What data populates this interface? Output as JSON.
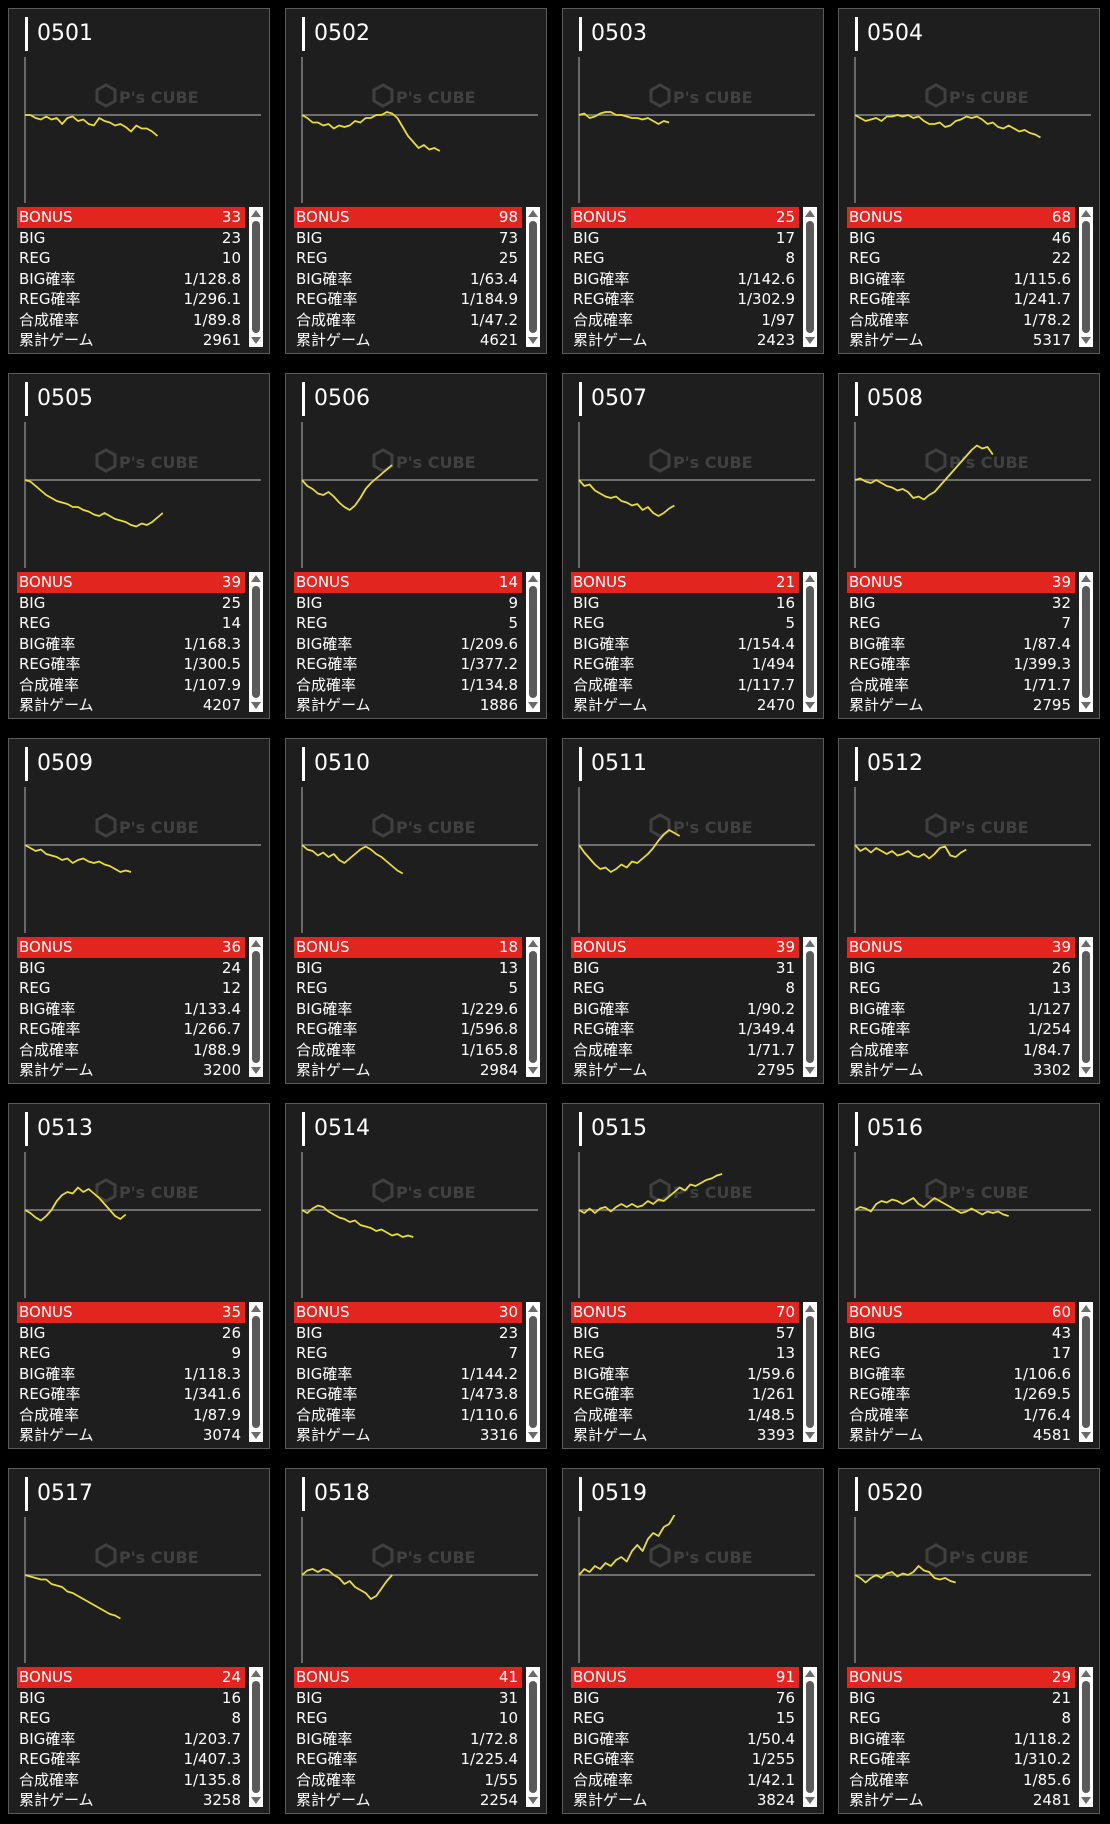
{
  "labels": {
    "bonus": "BONUS",
    "big": "BIG",
    "reg": "REG",
    "big_rate": "BIG確率",
    "reg_rate": "REG確率",
    "combined_rate": "合成確率",
    "total_games": "累計ゲーム"
  },
  "watermark": {
    "text": "P's CUBE"
  },
  "colors": {
    "line": "#e8dd3c",
    "bonus_bar": "#e2261f",
    "card": "#1e1e1e",
    "axis": "#888888"
  },
  "machines": [
    {
      "id": "0501",
      "bonus": "33",
      "big": "23",
      "reg": "10",
      "big_rate": "1/128.8",
      "reg_rate": "1/296.1",
      "combined_rate": "1/89.8",
      "total_games": "2961",
      "trend": [
        0,
        0,
        0.1,
        0.15,
        0.05,
        0.15,
        0.1,
        0.3,
        0.1,
        0.05,
        0.2,
        0.15,
        0.3,
        0.35,
        0.1,
        0.2,
        0.25,
        0.35,
        0.3,
        0.4,
        0.55,
        0.35,
        0.45,
        0.45,
        0.55,
        0.7
      ]
    },
    {
      "id": "0502",
      "bonus": "98",
      "big": "73",
      "reg": "25",
      "big_rate": "1/63.4",
      "reg_rate": "1/184.9",
      "combined_rate": "1/47.2",
      "total_games": "4621",
      "trend": [
        0,
        0.1,
        0.25,
        0.25,
        0.35,
        0.3,
        0.45,
        0.35,
        0.4,
        0.35,
        0.2,
        0.25,
        0.1,
        0.1,
        0,
        0,
        -0.1,
        -0.05,
        0.1,
        0.4,
        0.7,
        0.9,
        1.1,
        1.0,
        1.15,
        1.1,
        1.2
      ]
    },
    {
      "id": "0503",
      "bonus": "25",
      "big": "17",
      "reg": "8",
      "big_rate": "1/142.6",
      "reg_rate": "1/302.9",
      "combined_rate": "1/97",
      "total_games": "2423",
      "trend": [
        0,
        -0.05,
        0.1,
        0.05,
        -0.05,
        -0.1,
        -0.1,
        0,
        0,
        0.05,
        0.1,
        0.1,
        0.15,
        0.1,
        0.2,
        0.3,
        0.2,
        0.25
      ]
    },
    {
      "id": "0504",
      "bonus": "68",
      "big": "46",
      "reg": "22",
      "big_rate": "1/115.6",
      "reg_rate": "1/241.7",
      "combined_rate": "1/78.2",
      "total_games": "5317",
      "trend": [
        0,
        0.1,
        0.2,
        0.15,
        0.1,
        0.2,
        0.05,
        0.05,
        0,
        0.05,
        0,
        0.1,
        0.05,
        0.2,
        0.3,
        0.3,
        0.25,
        0.4,
        0.35,
        0.2,
        0.15,
        0.05,
        0.1,
        0.05,
        0.15,
        0.3,
        0.25,
        0.4,
        0.45,
        0.35,
        0.45,
        0.55,
        0.5,
        0.6,
        0.65,
        0.75
      ]
    },
    {
      "id": "0505",
      "bonus": "39",
      "big": "25",
      "reg": "14",
      "big_rate": "1/168.3",
      "reg_rate": "1/300.5",
      "combined_rate": "1/107.9",
      "total_games": "4207",
      "trend": [
        0,
        0.05,
        0.2,
        0.35,
        0.5,
        0.6,
        0.7,
        0.75,
        0.8,
        0.9,
        0.9,
        1.0,
        1.05,
        1.15,
        1.2,
        1.1,
        1.2,
        1.3,
        1.35,
        1.4,
        1.5,
        1.55,
        1.45,
        1.5,
        1.4,
        1.25,
        1.1
      ]
    },
    {
      "id": "0506",
      "bonus": "14",
      "big": "9",
      "reg": "5",
      "big_rate": "1/209.6",
      "reg_rate": "1/377.2",
      "combined_rate": "1/134.8",
      "total_games": "1886",
      "trend": [
        0,
        0.2,
        0.3,
        0.45,
        0.5,
        0.4,
        0.55,
        0.75,
        0.9,
        1.0,
        0.85,
        0.6,
        0.3,
        0.1,
        -0.05,
        -0.2,
        -0.35,
        -0.5
      ]
    },
    {
      "id": "0507",
      "bonus": "21",
      "big": "16",
      "reg": "5",
      "big_rate": "1/154.4",
      "reg_rate": "1/494",
      "combined_rate": "1/117.7",
      "total_games": "2470",
      "trend": [
        0,
        0.2,
        0.15,
        0.35,
        0.45,
        0.55,
        0.6,
        0.55,
        0.7,
        0.75,
        0.85,
        0.8,
        1.0,
        0.9,
        1.1,
        1.2,
        1.1,
        0.95,
        0.85
      ]
    },
    {
      "id": "0508",
      "bonus": "39",
      "big": "32",
      "reg": "7",
      "big_rate": "1/87.4",
      "reg_rate": "1/399.3",
      "combined_rate": "1/71.7",
      "total_games": "2795",
      "trend": [
        0,
        -0.05,
        0.05,
        0.1,
        0,
        0.1,
        0.2,
        0.25,
        0.35,
        0.3,
        0.4,
        0.6,
        0.55,
        0.65,
        0.5,
        0.4,
        0.2,
        0,
        -0.2,
        -0.4,
        -0.6,
        -0.8,
        -1.0,
        -1.15,
        -1.05,
        -1.1,
        -0.85
      ]
    },
    {
      "id": "0509",
      "bonus": "36",
      "big": "24",
      "reg": "12",
      "big_rate": "1/133.4",
      "reg_rate": "1/266.7",
      "combined_rate": "1/88.9",
      "total_games": "3200",
      "trend": [
        0,
        0.1,
        0.2,
        0.15,
        0.3,
        0.35,
        0.4,
        0.5,
        0.45,
        0.6,
        0.5,
        0.45,
        0.55,
        0.6,
        0.55,
        0.65,
        0.7,
        0.8,
        0.9,
        0.85,
        0.9
      ]
    },
    {
      "id": "0510",
      "bonus": "18",
      "big": "13",
      "reg": "5",
      "big_rate": "1/229.6",
      "reg_rate": "1/596.8",
      "combined_rate": "1/165.8",
      "total_games": "2984",
      "trend": [
        0,
        0.15,
        0.2,
        0.35,
        0.25,
        0.4,
        0.3,
        0.5,
        0.6,
        0.45,
        0.3,
        0.15,
        0.05,
        0.15,
        0.3,
        0.4,
        0.55,
        0.7,
        0.85,
        0.95
      ]
    },
    {
      "id": "0511",
      "bonus": "39",
      "big": "31",
      "reg": "8",
      "big_rate": "1/90.2",
      "reg_rate": "1/349.4",
      "combined_rate": "1/71.7",
      "total_games": "2795",
      "trend": [
        0,
        0.25,
        0.45,
        0.65,
        0.8,
        0.75,
        0.9,
        0.8,
        0.65,
        0.75,
        0.55,
        0.6,
        0.45,
        0.3,
        0.1,
        -0.15,
        -0.35,
        -0.5,
        -0.4,
        -0.3
      ]
    },
    {
      "id": "0512",
      "bonus": "39",
      "big": "26",
      "reg": "13",
      "big_rate": "1/127",
      "reg_rate": "1/254",
      "combined_rate": "1/84.7",
      "total_games": "3302",
      "trend": [
        0,
        0.2,
        0.1,
        0.25,
        0.1,
        0.2,
        0.3,
        0.2,
        0.35,
        0.3,
        0.2,
        0.35,
        0.4,
        0.3,
        0.45,
        0.3,
        0.1,
        0.05,
        0.35,
        0.4,
        0.25,
        0.15
      ]
    },
    {
      "id": "0513",
      "bonus": "35",
      "big": "26",
      "reg": "9",
      "big_rate": "1/118.3",
      "reg_rate": "1/341.6",
      "combined_rate": "1/87.9",
      "total_games": "3074",
      "trend": [
        0,
        0.1,
        0.25,
        0.35,
        0.2,
        0,
        -0.3,
        -0.5,
        -0.6,
        -0.55,
        -0.75,
        -0.6,
        -0.7,
        -0.55,
        -0.4,
        -0.2,
        0,
        0.2,
        0.3,
        0.15
      ]
    },
    {
      "id": "0514",
      "bonus": "30",
      "big": "23",
      "reg": "7",
      "big_rate": "1/144.2",
      "reg_rate": "1/473.8",
      "combined_rate": "1/110.6",
      "total_games": "3316",
      "trend": [
        0,
        0.1,
        -0.05,
        -0.15,
        -0.1,
        0.05,
        0.15,
        0.25,
        0.3,
        0.4,
        0.35,
        0.5,
        0.55,
        0.6,
        0.7,
        0.65,
        0.75,
        0.85,
        0.8,
        0.9,
        0.85,
        0.9
      ]
    },
    {
      "id": "0515",
      "bonus": "70",
      "big": "57",
      "reg": "13",
      "big_rate": "1/59.6",
      "reg_rate": "1/261",
      "combined_rate": "1/48.5",
      "total_games": "3393",
      "trend": [
        0,
        0.1,
        -0.05,
        0.1,
        -0.05,
        -0.1,
        0.05,
        -0.1,
        -0.2,
        -0.1,
        -0.2,
        -0.1,
        -0.15,
        -0.3,
        -0.2,
        -0.35,
        -0.3,
        -0.45,
        -0.6,
        -0.75,
        -0.65,
        -0.85,
        -0.8,
        -0.9,
        -1.0,
        -1.05,
        -1.15,
        -1.2
      ]
    },
    {
      "id": "0516",
      "bonus": "60",
      "big": "43",
      "reg": "17",
      "big_rate": "1/106.6",
      "reg_rate": "1/269.5",
      "combined_rate": "1/76.4",
      "total_games": "4581",
      "trend": [
        0,
        -0.1,
        -0.05,
        0.05,
        -0.2,
        -0.3,
        -0.25,
        -0.35,
        -0.3,
        -0.2,
        -0.3,
        -0.4,
        -0.2,
        -0.1,
        -0.25,
        -0.4,
        -0.3,
        -0.2,
        -0.1,
        0,
        0.1,
        0.05,
        -0.05,
        0.05,
        0.15,
        0.05,
        0.1,
        0.05,
        0.15,
        0.2
      ]
    },
    {
      "id": "0517",
      "bonus": "24",
      "big": "16",
      "reg": "8",
      "big_rate": "1/203.7",
      "reg_rate": "1/407.3",
      "combined_rate": "1/135.8",
      "total_games": "3258",
      "trend": [
        0,
        0.05,
        0.1,
        0.15,
        0.15,
        0.3,
        0.35,
        0.4,
        0.55,
        0.6,
        0.7,
        0.8,
        0.9,
        1.0,
        1.1,
        1.2,
        1.3,
        1.35,
        1.45
      ]
    },
    {
      "id": "0518",
      "bonus": "41",
      "big": "31",
      "reg": "10",
      "big_rate": "1/72.8",
      "reg_rate": "1/225.4",
      "combined_rate": "1/55",
      "total_games": "2254",
      "trend": [
        0,
        -0.15,
        -0.2,
        -0.1,
        -0.2,
        -0.15,
        0,
        0.1,
        0.3,
        0.2,
        0.4,
        0.5,
        0.6,
        0.8,
        0.7,
        0.45,
        0.2,
        0
      ]
    },
    {
      "id": "0519",
      "bonus": "91",
      "big": "76",
      "reg": "15",
      "big_rate": "1/50.4",
      "reg_rate": "1/255",
      "combined_rate": "1/42.1",
      "total_games": "3824",
      "trend": [
        0,
        -0.2,
        -0.1,
        -0.3,
        -0.2,
        -0.4,
        -0.3,
        -0.5,
        -0.6,
        -0.45,
        -0.8,
        -1.0,
        -0.8,
        -1.2,
        -1.4,
        -1.3,
        -1.6,
        -1.7,
        -2.0,
        -2.3,
        -2.6,
        -2.9,
        -3.2,
        -3.55,
        -3.45,
        -3.35,
        -3.3,
        -3.25,
        -3.2,
        -3.3,
        -3.4
      ]
    },
    {
      "id": "0520",
      "bonus": "29",
      "big": "21",
      "reg": "8",
      "big_rate": "1/118.2",
      "reg_rate": "1/310.2",
      "combined_rate": "1/85.6",
      "total_games": "2481",
      "trend": [
        0,
        0.1,
        0.25,
        0.1,
        0,
        0.1,
        -0.05,
        -0.1,
        0.05,
        -0.05,
        0,
        -0.1,
        -0.3,
        -0.15,
        -0.1,
        0.1,
        0.15,
        0.1,
        0.2,
        0.25
      ]
    }
  ]
}
